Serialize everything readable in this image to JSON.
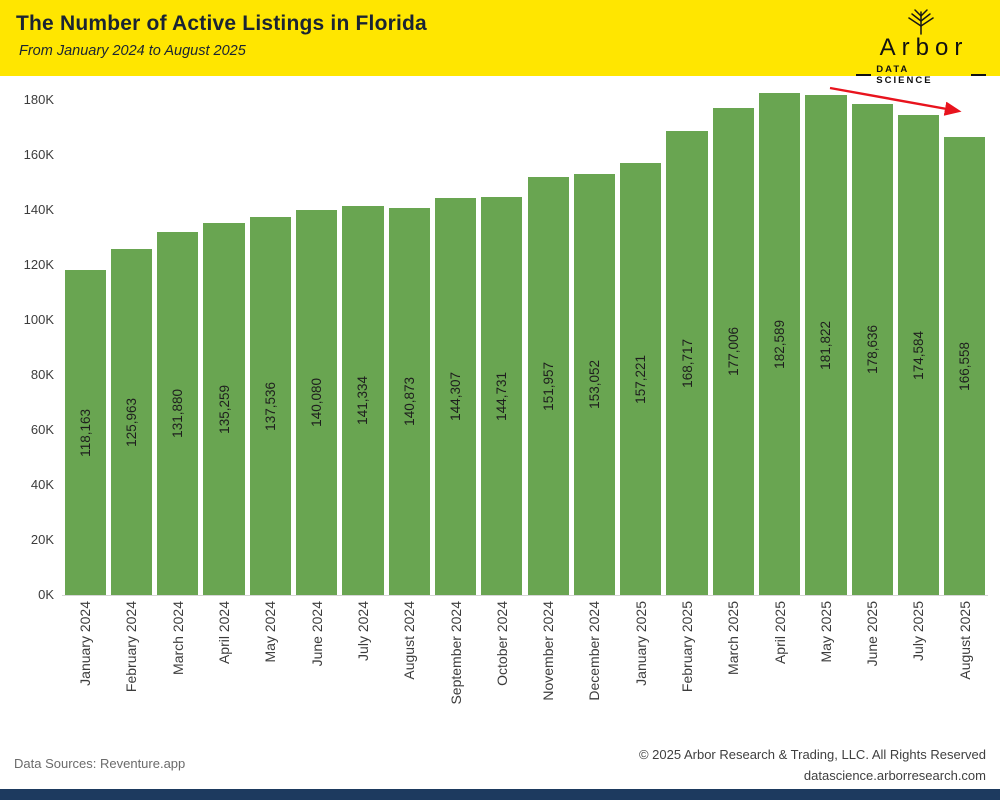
{
  "header": {
    "title": "The Number of Active Listings in Florida",
    "subtitle": "From January 2024 to August 2025",
    "logo": {
      "name": "Arbor",
      "tagline": "DATA SCIENCE"
    }
  },
  "chart_data": {
    "type": "bar",
    "title": "The Number of Active Listings in Florida",
    "subtitle": "From January 2024 to August 2025",
    "categories": [
      "January 2024",
      "February 2024",
      "March 2024",
      "April 2024",
      "May 2024",
      "June 2024",
      "July 2024",
      "August 2024",
      "September 2024",
      "October 2024",
      "November 2024",
      "December 2024",
      "January 2025",
      "February 2025",
      "March 2025",
      "April 2025",
      "May 2025",
      "June 2025",
      "July 2025",
      "August 2025"
    ],
    "values": [
      118163,
      125963,
      131880,
      135259,
      137536,
      140080,
      141334,
      140873,
      144307,
      144731,
      151957,
      153052,
      157221,
      168717,
      177006,
      182589,
      181822,
      178636,
      174584,
      166558
    ],
    "labels": [
      "118,163",
      "125,963",
      "131,880",
      "135,259",
      "137,536",
      "140,080",
      "141,334",
      "140,873",
      "144,307",
      "144,731",
      "151,957",
      "153,052",
      "157,221",
      "168,717",
      "177,006",
      "182,589",
      "181,822",
      "178,636",
      "174,584",
      "166,558"
    ],
    "xlabel": "",
    "ylabel": "",
    "ylim": [
      0,
      185000
    ],
    "yticks": [
      0,
      20000,
      40000,
      60000,
      80000,
      100000,
      120000,
      140000,
      160000,
      180000
    ],
    "ytick_labels": [
      "0K",
      "20K",
      "40K",
      "60K",
      "80K",
      "100K",
      "120K",
      "140K",
      "160K",
      "180K"
    ],
    "grid": false,
    "legend": "none",
    "bar_color": "#69a551",
    "annotation": {
      "type": "arrow",
      "color": "#e8131d",
      "meaning": "downward trend over last months"
    }
  },
  "footer": {
    "source": "Data Sources: Reventure.app",
    "copyright": "© 2025 Arbor Research & Trading, LLC. All Rights Reserved",
    "website": "datascience.arborresearch.com"
  },
  "colors": {
    "header_bg": "#ffe600",
    "bar": "#69a551",
    "title_text": "#1a2433",
    "trend_arrow": "#e8131d",
    "bottom_accent_bar": "#1d3a5f"
  }
}
